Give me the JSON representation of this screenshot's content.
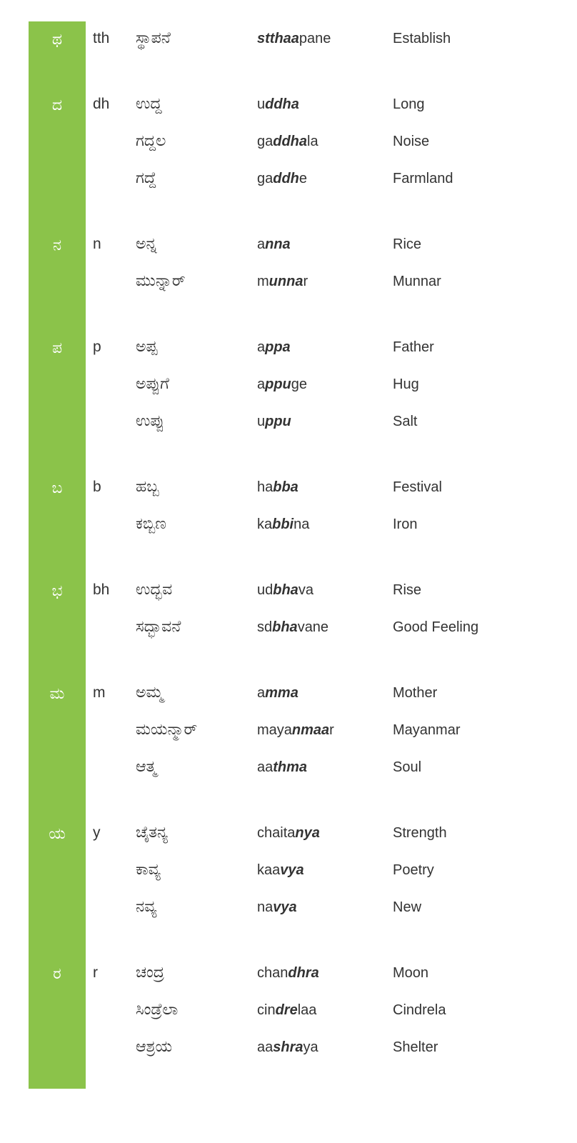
{
  "colors": {
    "letter_bg": "#8bc34a",
    "letter_fg": "#ffffff",
    "text": "#333333",
    "page_bg": "#ffffff"
  },
  "typography": {
    "letter_fontsize": 22,
    "roman_fontsize": 21,
    "kannada_fontsize": 22,
    "translit_fontsize": 20,
    "english_fontsize": 20
  },
  "layout": {
    "col_letter_width": 80,
    "col_roman_width": 70,
    "col_kn_width": 170,
    "col_translit_width": 190,
    "group_spacing": 40
  },
  "groups": [
    {
      "letter": "ಥ",
      "roman": "tth",
      "words": [
        {
          "kn": "ಸ್ಥಾಪನೆ",
          "translit": [
            {
              "t": "stthaa",
              "b": true
            },
            {
              "t": "pane",
              "b": false
            }
          ],
          "en": "Establish"
        }
      ]
    },
    {
      "letter": "ದ",
      "roman": "dh",
      "words": [
        {
          "kn": "ಉದ್ದ",
          "translit": [
            {
              "t": "u",
              "b": false
            },
            {
              "t": "ddha",
              "b": true
            }
          ],
          "en": "Long"
        },
        {
          "kn": "ಗದ್ದಲ",
          "translit": [
            {
              "t": "ga",
              "b": false
            },
            {
              "t": "ddha",
              "b": true
            },
            {
              "t": "la",
              "b": false
            }
          ],
          "en": "Noise"
        },
        {
          "kn": "ಗದ್ದೆ",
          "translit": [
            {
              "t": "ga",
              "b": false
            },
            {
              "t": "ddh",
              "b": true
            },
            {
              "t": "e",
              "b": false
            }
          ],
          "en": "Farmland"
        }
      ]
    },
    {
      "letter": "ನ",
      "roman": "n",
      "words": [
        {
          "kn": "ಅನ್ನ",
          "translit": [
            {
              "t": "a",
              "b": false
            },
            {
              "t": "nna",
              "b": true
            }
          ],
          "en": "Rice"
        },
        {
          "kn": "ಮುನ್ನಾರ್",
          "translit": [
            {
              "t": "m",
              "b": false
            },
            {
              "t": "unna",
              "b": true
            },
            {
              "t": "r",
              "b": false
            }
          ],
          "en": "Munnar"
        }
      ]
    },
    {
      "letter": "ಪ",
      "roman": "p",
      "words": [
        {
          "kn": "ಅಪ್ಪ",
          "translit": [
            {
              "t": "a",
              "b": false
            },
            {
              "t": "ppa",
              "b": true
            }
          ],
          "en": "Father"
        },
        {
          "kn": "ಅಪ್ಪುಗೆ",
          "translit": [
            {
              "t": "a",
              "b": false
            },
            {
              "t": "ppu",
              "b": true
            },
            {
              "t": "ge",
              "b": false
            }
          ],
          "en": "Hug"
        },
        {
          "kn": "ಉಪ್ಪು",
          "translit": [
            {
              "t": "u",
              "b": false
            },
            {
              "t": "ppu",
              "b": true
            }
          ],
          "en": "Salt"
        }
      ]
    },
    {
      "letter": "ಬ",
      "roman": "b",
      "words": [
        {
          "kn": "ಹಬ್ಬ",
          "translit": [
            {
              "t": "ha",
              "b": false
            },
            {
              "t": "bba",
              "b": true
            }
          ],
          "en": "Festival"
        },
        {
          "kn": "ಕಬ್ಬಿಣ",
          "translit": [
            {
              "t": "ka",
              "b": false
            },
            {
              "t": "bbi",
              "b": true
            },
            {
              "t": "na",
              "b": false
            }
          ],
          "en": "Iron"
        }
      ]
    },
    {
      "letter": "ಭ",
      "roman": "bh",
      "words": [
        {
          "kn": "ಉದ್ಭವ",
          "translit": [
            {
              "t": "ud",
              "b": false
            },
            {
              "t": "bha",
              "b": true
            },
            {
              "t": "va",
              "b": false
            }
          ],
          "en": "Rise"
        },
        {
          "kn": "ಸದ್ಭಾವನೆ",
          "translit": [
            {
              "t": "sd",
              "b": false
            },
            {
              "t": "bha",
              "b": true
            },
            {
              "t": "vane",
              "b": false
            }
          ],
          "en": "Good Feeling"
        }
      ]
    },
    {
      "letter": "ಮ",
      "roman": "m",
      "words": [
        {
          "kn": "ಅಮ್ಮ",
          "translit": [
            {
              "t": "a",
              "b": false
            },
            {
              "t": "mma",
              "b": true
            }
          ],
          "en": "Mother"
        },
        {
          "kn": "ಮಯನ್ಮಾರ್",
          "translit": [
            {
              "t": "maya",
              "b": false
            },
            {
              "t": "nmaa",
              "b": true
            },
            {
              "t": "r",
              "b": false
            }
          ],
          "en": "Mayanmar"
        },
        {
          "kn": "ಆತ್ಮ",
          "translit": [
            {
              "t": "aa",
              "b": false
            },
            {
              "t": "thma",
              "b": true
            }
          ],
          "en": "Soul"
        }
      ]
    },
    {
      "letter": "ಯ",
      "roman": "y",
      "words": [
        {
          "kn": "ಚೈತನ್ಯ",
          "translit": [
            {
              "t": "chaita",
              "b": false
            },
            {
              "t": "nya",
              "b": true
            }
          ],
          "en": "Strength"
        },
        {
          "kn": "ಕಾವ್ಯ",
          "translit": [
            {
              "t": "kaa",
              "b": false
            },
            {
              "t": "vya",
              "b": true
            }
          ],
          "en": "Poetry"
        },
        {
          "kn": "ನವ್ಯ",
          "translit": [
            {
              "t": "na",
              "b": false
            },
            {
              "t": "vya",
              "b": true
            }
          ],
          "en": "New"
        }
      ]
    },
    {
      "letter": "ರ",
      "roman": "r",
      "words": [
        {
          "kn": "ಚಂದ್ರ",
          "translit": [
            {
              "t": "chan",
              "b": false
            },
            {
              "t": "dhra",
              "b": true
            }
          ],
          "en": "Moon"
        },
        {
          "kn": "ಸಿಂಡ್ರೆಲಾ",
          "translit": [
            {
              "t": "cin",
              "b": false
            },
            {
              "t": "dre",
              "b": true
            },
            {
              "t": "laa",
              "b": false
            }
          ],
          "en": "Cindrela"
        },
        {
          "kn": "ಆಶ್ರಯ",
          "translit": [
            {
              "t": "aa",
              "b": false
            },
            {
              "t": "shra",
              "b": true
            },
            {
              "t": "ya",
              "b": false
            }
          ],
          "en": "Shelter"
        }
      ]
    }
  ]
}
